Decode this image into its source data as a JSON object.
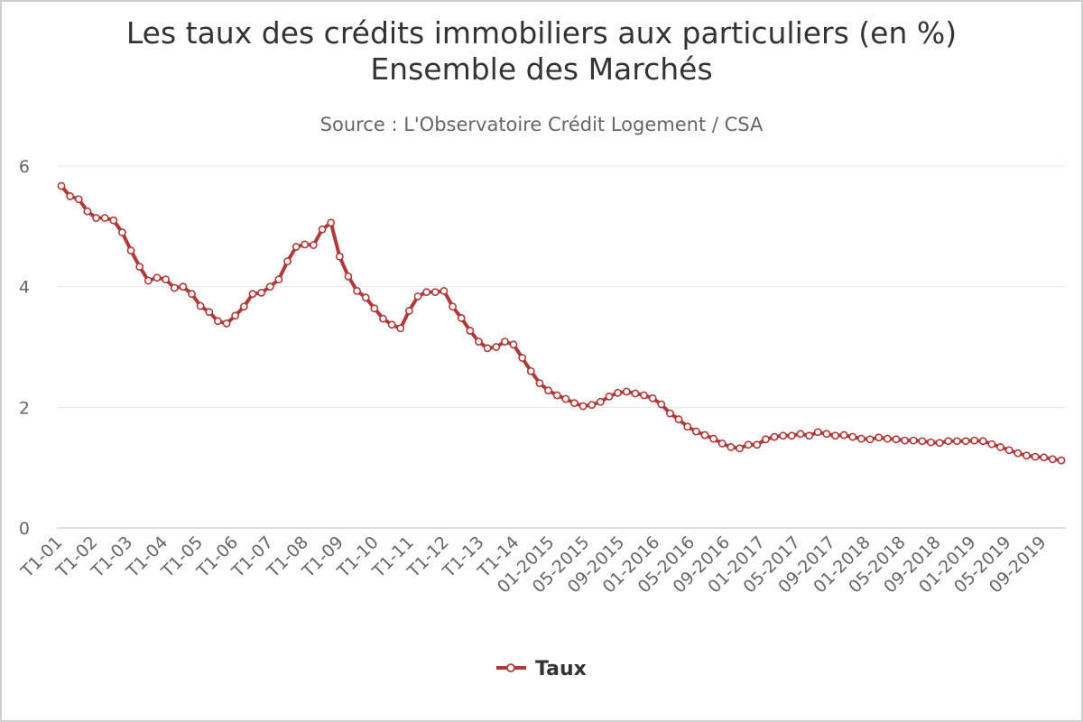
{
  "chart_data": {
    "type": "line",
    "title_line1": "Les taux des crédits immobiliers aux particuliers (en %)",
    "title_line2": "Ensemble des Marchés",
    "subtitle": "Source : L'Observatoire Crédit Logement / CSA",
    "ylim": [
      0,
      6
    ],
    "yticks": [
      0,
      2,
      4,
      6
    ],
    "grid": true,
    "legend_position": "bottom-center",
    "color": "#b03a3a",
    "x_tick_labels": [
      "T1-01",
      "T1-02",
      "T1-03",
      "T1-04",
      "T1-05",
      "T1-06",
      "T1-07",
      "T1-08",
      "T1-09",
      "T1-10",
      "T1-11",
      "T1-12",
      "T1-13",
      "T1-14",
      "01-2015",
      "05-2015",
      "09-2015",
      "01-2016",
      "05-2016",
      "09-2016",
      "01-2017",
      "05-2017",
      "09-2017",
      "01-2018",
      "05-2018",
      "09-2018",
      "01-2019",
      "05-2019",
      "09-2019"
    ],
    "series": [
      {
        "name": "Taux",
        "values": [
          5.67,
          5.5,
          5.45,
          5.25,
          5.14,
          5.14,
          5.1,
          4.9,
          4.6,
          4.33,
          4.1,
          4.15,
          4.12,
          3.98,
          4.0,
          3.88,
          3.68,
          3.58,
          3.43,
          3.39,
          3.52,
          3.67,
          3.88,
          3.9,
          4.0,
          4.12,
          4.42,
          4.66,
          4.7,
          4.69,
          4.95,
          5.06,
          4.5,
          4.17,
          3.93,
          3.82,
          3.64,
          3.47,
          3.37,
          3.31,
          3.6,
          3.84,
          3.91,
          3.91,
          3.93,
          3.67,
          3.48,
          3.27,
          3.09,
          2.98,
          3.0,
          3.09,
          3.04,
          2.82,
          2.6,
          2.4,
          2.28,
          2.2,
          2.14,
          2.07,
          2.02,
          2.04,
          2.09,
          2.18,
          2.24,
          2.26,
          2.23,
          2.2,
          2.15,
          2.05,
          1.9,
          1.8,
          1.68,
          1.6,
          1.54,
          1.48,
          1.4,
          1.34,
          1.32,
          1.38,
          1.38,
          1.47,
          1.51,
          1.53,
          1.53,
          1.56,
          1.53,
          1.59,
          1.56,
          1.53,
          1.54,
          1.51,
          1.48,
          1.47,
          1.5,
          1.48,
          1.47,
          1.45,
          1.45,
          1.44,
          1.42,
          1.41,
          1.44,
          1.44,
          1.44,
          1.45,
          1.44,
          1.39,
          1.34,
          1.29,
          1.24,
          1.2,
          1.18,
          1.17,
          1.14,
          1.12
        ]
      }
    ]
  }
}
